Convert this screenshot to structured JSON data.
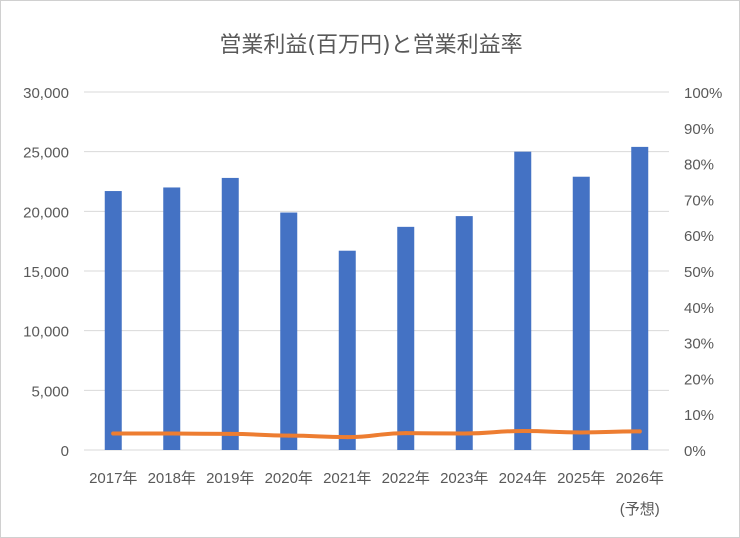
{
  "chart_data": {
    "type": "bar",
    "title": "営業利益(百万円)と営業利益率",
    "categories": [
      "2017年",
      "2018年",
      "2019年",
      "2020年",
      "2021年",
      "2022年",
      "2023年",
      "2024年",
      "2025年",
      "2026年"
    ],
    "category_note": "(予想)",
    "y_left": {
      "ylim": [
        0,
        30000
      ],
      "ticks": [
        "0",
        "5,000",
        "10,000",
        "15,000",
        "20,000",
        "25,000",
        "30,000"
      ]
    },
    "y_right": {
      "ylim": [
        0,
        1.0
      ],
      "ticks": [
        "0%",
        "10%",
        "20%",
        "30%",
        "40%",
        "50%",
        "60%",
        "70%",
        "80%",
        "90%",
        "100%"
      ]
    },
    "grid": true,
    "series": [
      {
        "type": "bar",
        "axis": "left",
        "color": "#4472c4",
        "values": [
          21700,
          22000,
          22800,
          19900,
          16700,
          18700,
          19600,
          25000,
          22900,
          25400
        ]
      },
      {
        "type": "line",
        "axis": "right",
        "color": "#ed7d31",
        "values": [
          0.046,
          0.046,
          0.045,
          0.04,
          0.036,
          0.047,
          0.046,
          0.053,
          0.049,
          0.052
        ]
      }
    ]
  }
}
